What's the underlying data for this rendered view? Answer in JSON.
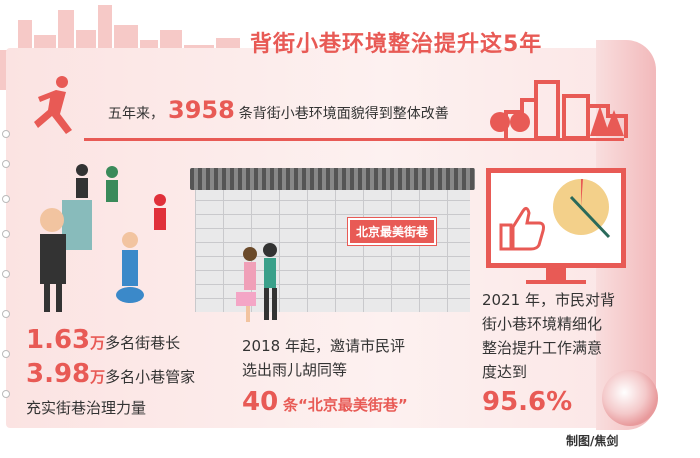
{
  "title": "背街小巷环境整治提升这5年",
  "lead": {
    "prefix": "五年来，",
    "number": "3958",
    "suffix": "条背街小巷环境面貌得到整体改善"
  },
  "left": {
    "n1": "1.63",
    "u1": "万",
    "t1": "多名街巷长",
    "n2": "3.98",
    "u2": "万",
    "t2": "多名小巷管家",
    "t3": "充实街巷治理力量"
  },
  "middle": {
    "sign": "北京最美街巷",
    "l1": "2018 年起，邀请市民评",
    "l2": "选出雨儿胡同等",
    "n": "40",
    "t": "条“北京最美街巷”"
  },
  "right": {
    "l1": "2021 年，市民对背",
    "l2": "街小巷环境精细化",
    "l3": "整治提升工作满意",
    "l4": "度达到",
    "n": "95.6%",
    "satisfaction_percent": 95.6
  },
  "credit": "制图/焦剑",
  "colors": {
    "accent": "#e85a55",
    "background": "#fbe9e8"
  }
}
